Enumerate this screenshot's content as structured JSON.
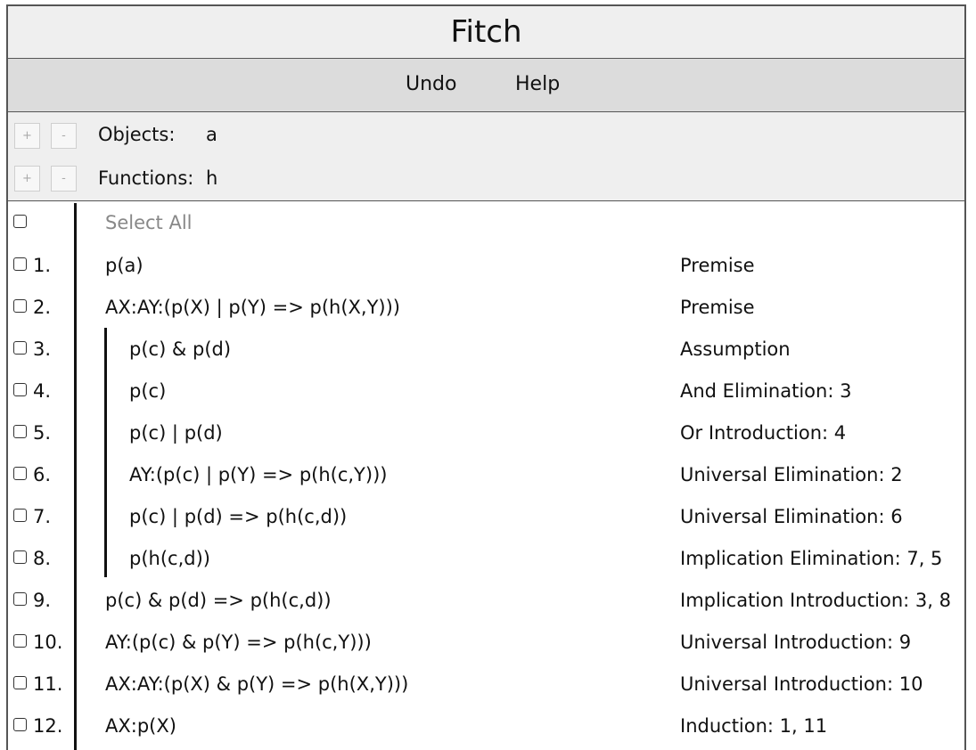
{
  "app": {
    "title": "Fitch"
  },
  "toolbar": {
    "undo_label": "Undo",
    "help_label": "Help"
  },
  "vocabulary": {
    "objects_label": "Objects:",
    "objects_value": "a",
    "functions_label": "Functions:",
    "functions_value": "h",
    "plus_label": "+",
    "minus_label": "-"
  },
  "proof": {
    "select_all_label": "Select All",
    "lines": [
      {
        "num": "1.",
        "formula": "p(a)",
        "justification": "Premise",
        "depth": 0
      },
      {
        "num": "2.",
        "formula": "AX:AY:(p(X) | p(Y) => p(h(X,Y)))",
        "justification": "Premise",
        "depth": 0
      },
      {
        "num": "3.",
        "formula": "p(c) & p(d)",
        "justification": "Assumption",
        "depth": 1
      },
      {
        "num": "4.",
        "formula": "p(c)",
        "justification": "And Elimination: 3",
        "depth": 1
      },
      {
        "num": "5.",
        "formula": "p(c) | p(d)",
        "justification": "Or Introduction: 4",
        "depth": 1
      },
      {
        "num": "6.",
        "formula": "AY:(p(c) | p(Y) => p(h(c,Y)))",
        "justification": "Universal Elimination: 2",
        "depth": 1
      },
      {
        "num": "7.",
        "formula": "p(c) | p(d) => p(h(c,d))",
        "justification": "Universal Elimination: 6",
        "depth": 1
      },
      {
        "num": "8.",
        "formula": "p(h(c,d))",
        "justification": "Implication Elimination: 7, 5",
        "depth": 1
      },
      {
        "num": "9.",
        "formula": "p(c) & p(d) => p(h(c,d))",
        "justification": "Implication Introduction: 3, 8",
        "depth": 0
      },
      {
        "num": "10.",
        "formula": "AY:(p(c) & p(Y) => p(h(c,Y)))",
        "justification": "Universal Introduction: 9",
        "depth": 0
      },
      {
        "num": "11.",
        "formula": "AX:AY:(p(X) & p(Y) => p(h(X,Y)))",
        "justification": "Universal Introduction: 10",
        "depth": 0
      },
      {
        "num": "12.",
        "formula": "AX:p(X)",
        "justification": "Induction: 1, 11",
        "depth": 0
      }
    ]
  }
}
